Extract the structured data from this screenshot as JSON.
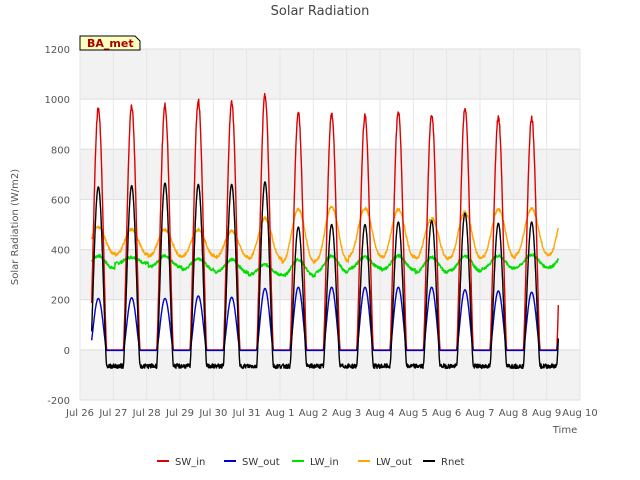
{
  "chart_data": {
    "type": "line",
    "title": "Solar Radiation",
    "xlabel": "Time",
    "ylabel": "Solar Radiation (W/m2)",
    "badge": "BA_met",
    "ylim": [
      -200,
      1200
    ],
    "yticks": [
      -200,
      0,
      200,
      400,
      600,
      800,
      1000,
      1200
    ],
    "xlim": [
      0,
      15
    ],
    "xticks": [
      {
        "x": 0,
        "label": "Jul 26"
      },
      {
        "x": 1,
        "label": "Jul 27"
      },
      {
        "x": 2,
        "label": "Jul 28"
      },
      {
        "x": 3,
        "label": "Jul 29"
      },
      {
        "x": 4,
        "label": "Jul 30"
      },
      {
        "x": 5,
        "label": "Jul 31"
      },
      {
        "x": 6,
        "label": "Aug 1"
      },
      {
        "x": 7,
        "label": "Aug 2"
      },
      {
        "x": 8,
        "label": "Aug 3"
      },
      {
        "x": 9,
        "label": "Aug 4"
      },
      {
        "x": 10,
        "label": "Aug 5"
      },
      {
        "x": 11,
        "label": "Aug 6"
      },
      {
        "x": 12,
        "label": "Aug 7"
      },
      {
        "x": 13,
        "label": "Aug 8"
      },
      {
        "x": 14,
        "label": "Aug 9"
      },
      {
        "x": 15,
        "label": "Aug 10"
      }
    ],
    "grid": true,
    "legend_position": "bottom",
    "data_range": [
      0.35,
      14.35
    ],
    "series": [
      {
        "name": "SW_in",
        "color": "#dd0000",
        "kind": "peak",
        "base": 0,
        "peaks": [
          965,
          970,
          975,
          995,
          985,
          1015,
          945,
          945,
          935,
          950,
          940,
          965,
          930,
          925
        ]
      },
      {
        "name": "SW_out",
        "color": "#0000cc",
        "kind": "peak",
        "base": -2,
        "peaks": [
          205,
          208,
          205,
          215,
          210,
          245,
          250,
          250,
          250,
          250,
          250,
          240,
          235,
          230
        ]
      },
      {
        "name": "LW_in",
        "color": "#00dd00",
        "kind": "smooth",
        "night": [
          325,
          345,
          330,
          320,
          310,
          300,
          295,
          310,
          325,
          320,
          310,
          315,
          325,
          330
        ],
        "day": [
          375,
          370,
          375,
          365,
          360,
          340,
          360,
          375,
          370,
          375,
          370,
          375,
          375,
          380
        ]
      },
      {
        "name": "LW_out",
        "color": "#ffa500",
        "kind": "smooth",
        "night": [
          385,
          380,
          375,
          375,
          370,
          365,
          350,
          355,
          375,
          370,
          365,
          365,
          370,
          380
        ],
        "day": [
          490,
          480,
          480,
          480,
          475,
          525,
          560,
          570,
          565,
          560,
          525,
          550,
          560,
          565
        ]
      },
      {
        "name": "Rnet",
        "color": "#000000",
        "kind": "peak",
        "base": -65,
        "peaks": [
          650,
          655,
          665,
          660,
          660,
          670,
          490,
          500,
          500,
          510,
          515,
          545,
          505,
          510
        ]
      }
    ]
  }
}
